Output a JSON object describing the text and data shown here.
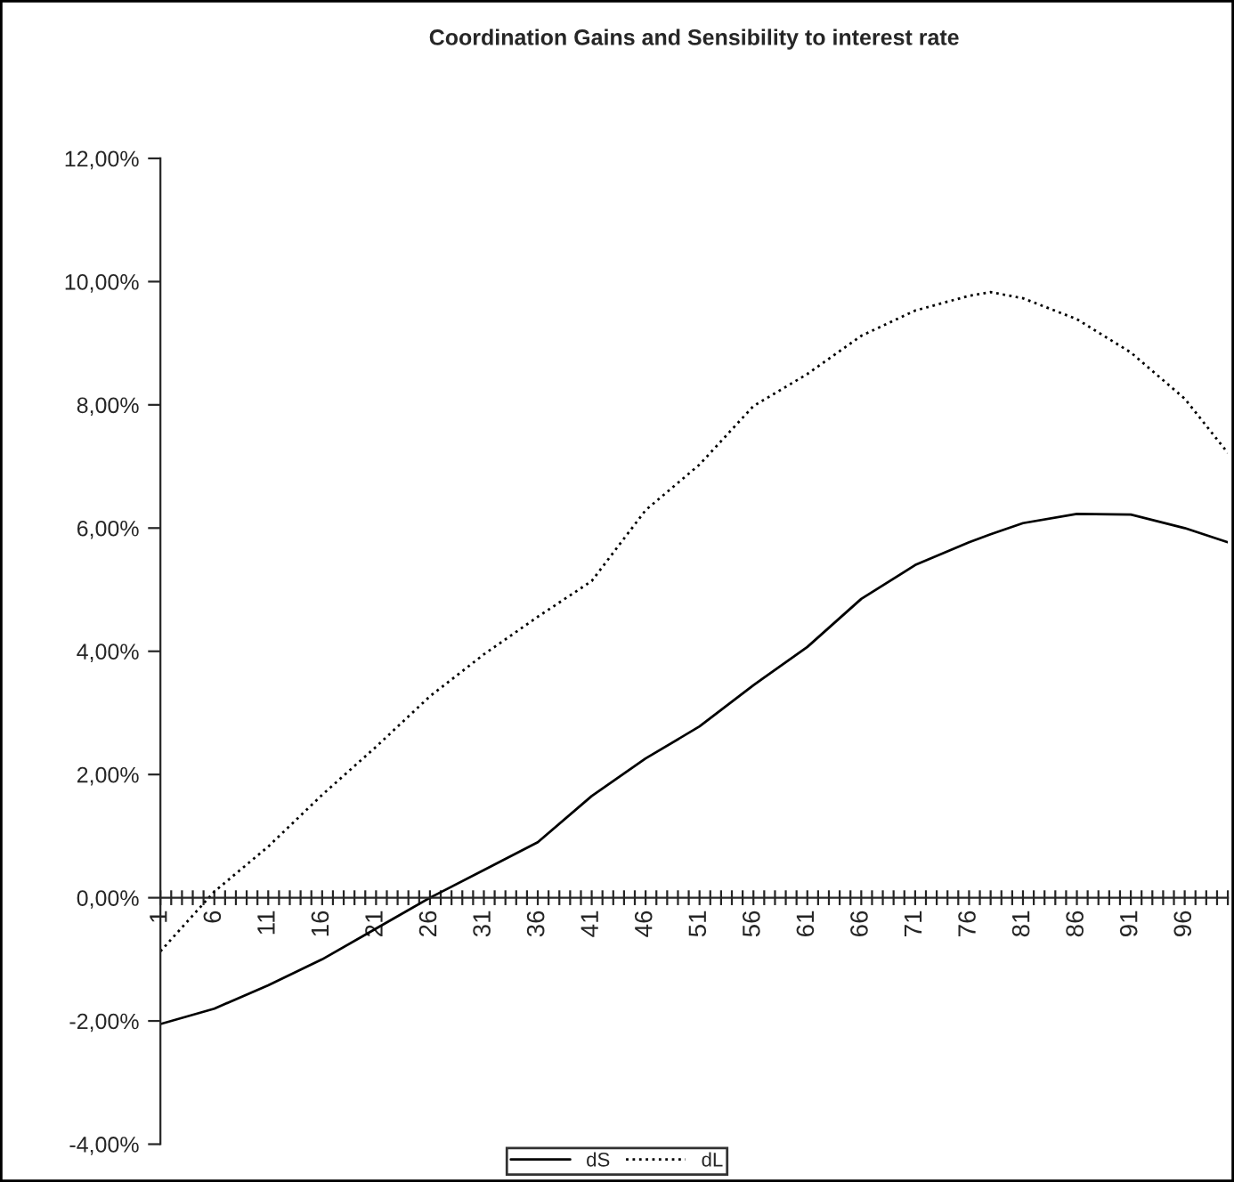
{
  "chart_data": {
    "type": "line",
    "title": "Coordination Gains and Sensibility to interest rate",
    "x": [
      1,
      6,
      11,
      16,
      21,
      26,
      31,
      36,
      41,
      46,
      51,
      56,
      61,
      66,
      71,
      76,
      78,
      81,
      86,
      91,
      96,
      100
    ],
    "series": [
      {
        "name": "dS",
        "color": "#000000",
        "line_style": "solid",
        "values": [
          -2.05,
          -1.8,
          -1.42,
          -1.0,
          -0.5,
          0.0,
          0.45,
          0.9,
          1.65,
          2.26,
          2.78,
          3.45,
          4.07,
          4.85,
          5.4,
          5.77,
          5.9,
          6.08,
          6.23,
          6.22,
          6.0,
          5.77
        ]
      },
      {
        "name": "dL",
        "color": "#000000",
        "line_style": "dotted",
        "values": [
          -0.87,
          0.1,
          0.83,
          1.67,
          2.45,
          3.27,
          3.95,
          4.56,
          5.14,
          6.29,
          7.03,
          7.98,
          8.5,
          9.12,
          9.53,
          9.77,
          9.83,
          9.73,
          9.39,
          8.85,
          8.1,
          7.22
        ]
      }
    ],
    "xlim": [
      1,
      100
    ],
    "xticks": [
      {
        "value": 1,
        "label": "1"
      },
      {
        "value": 2,
        "label": null
      },
      {
        "value": 3,
        "label": null
      },
      {
        "value": 4,
        "label": null
      },
      {
        "value": 5,
        "label": null
      },
      {
        "value": 6,
        "label": "6"
      },
      {
        "value": 7,
        "label": null
      },
      {
        "value": 8,
        "label": null
      },
      {
        "value": 9,
        "label": null
      },
      {
        "value": 10,
        "label": null
      },
      {
        "value": 11,
        "label": "11"
      },
      {
        "value": 12,
        "label": null
      },
      {
        "value": 13,
        "label": null
      },
      {
        "value": 14,
        "label": null
      },
      {
        "value": 15,
        "label": null
      },
      {
        "value": 16,
        "label": "16"
      },
      {
        "value": 17,
        "label": null
      },
      {
        "value": 18,
        "label": null
      },
      {
        "value": 19,
        "label": null
      },
      {
        "value": 20,
        "label": null
      },
      {
        "value": 21,
        "label": "21"
      },
      {
        "value": 22,
        "label": null
      },
      {
        "value": 23,
        "label": null
      },
      {
        "value": 24,
        "label": null
      },
      {
        "value": 25,
        "label": null
      },
      {
        "value": 26,
        "label": "26"
      },
      {
        "value": 27,
        "label": null
      },
      {
        "value": 28,
        "label": null
      },
      {
        "value": 29,
        "label": null
      },
      {
        "value": 30,
        "label": null
      },
      {
        "value": 31,
        "label": "31"
      },
      {
        "value": 32,
        "label": null
      },
      {
        "value": 33,
        "label": null
      },
      {
        "value": 34,
        "label": null
      },
      {
        "value": 35,
        "label": null
      },
      {
        "value": 36,
        "label": "36"
      },
      {
        "value": 37,
        "label": null
      },
      {
        "value": 38,
        "label": null
      },
      {
        "value": 39,
        "label": null
      },
      {
        "value": 40,
        "label": null
      },
      {
        "value": 41,
        "label": "41"
      },
      {
        "value": 42,
        "label": null
      },
      {
        "value": 43,
        "label": null
      },
      {
        "value": 44,
        "label": null
      },
      {
        "value": 45,
        "label": null
      },
      {
        "value": 46,
        "label": "46"
      },
      {
        "value": 47,
        "label": null
      },
      {
        "value": 48,
        "label": null
      },
      {
        "value": 49,
        "label": null
      },
      {
        "value": 50,
        "label": null
      },
      {
        "value": 51,
        "label": "51"
      },
      {
        "value": 52,
        "label": null
      },
      {
        "value": 53,
        "label": null
      },
      {
        "value": 54,
        "label": null
      },
      {
        "value": 55,
        "label": null
      },
      {
        "value": 56,
        "label": "56"
      },
      {
        "value": 57,
        "label": null
      },
      {
        "value": 58,
        "label": null
      },
      {
        "value": 59,
        "label": null
      },
      {
        "value": 60,
        "label": null
      },
      {
        "value": 61,
        "label": "61"
      },
      {
        "value": 62,
        "label": null
      },
      {
        "value": 63,
        "label": null
      },
      {
        "value": 64,
        "label": null
      },
      {
        "value": 65,
        "label": null
      },
      {
        "value": 66,
        "label": "66"
      },
      {
        "value": 67,
        "label": null
      },
      {
        "value": 68,
        "label": null
      },
      {
        "value": 69,
        "label": null
      },
      {
        "value": 70,
        "label": null
      },
      {
        "value": 71,
        "label": "71"
      },
      {
        "value": 72,
        "label": null
      },
      {
        "value": 73,
        "label": null
      },
      {
        "value": 74,
        "label": null
      },
      {
        "value": 75,
        "label": null
      },
      {
        "value": 76,
        "label": "76"
      },
      {
        "value": 77,
        "label": null
      },
      {
        "value": 78,
        "label": null
      },
      {
        "value": 79,
        "label": null
      },
      {
        "value": 80,
        "label": null
      },
      {
        "value": 81,
        "label": "81"
      },
      {
        "value": 82,
        "label": null
      },
      {
        "value": 83,
        "label": null
      },
      {
        "value": 84,
        "label": null
      },
      {
        "value": 85,
        "label": null
      },
      {
        "value": 86,
        "label": "86"
      },
      {
        "value": 87,
        "label": null
      },
      {
        "value": 88,
        "label": null
      },
      {
        "value": 89,
        "label": null
      },
      {
        "value": 90,
        "label": null
      },
      {
        "value": 91,
        "label": "91"
      },
      {
        "value": 92,
        "label": null
      },
      {
        "value": 93,
        "label": null
      },
      {
        "value": 94,
        "label": null
      },
      {
        "value": 95,
        "label": null
      },
      {
        "value": 96,
        "label": "96"
      },
      {
        "value": 97,
        "label": null
      },
      {
        "value": 98,
        "label": null
      },
      {
        "value": 99,
        "label": null
      },
      {
        "value": 100,
        "label": null
      }
    ],
    "ylim": [
      -4,
      12
    ],
    "yticks": [
      {
        "value": -4,
        "label": "-4,00%"
      },
      {
        "value": -2,
        "label": "-2,00%"
      },
      {
        "value": 0,
        "label": "0,00%"
      },
      {
        "value": 2,
        "label": "2,00%"
      },
      {
        "value": 4,
        "label": "4,00%"
      },
      {
        "value": 6,
        "label": "6,00%"
      },
      {
        "value": 8,
        "label": "8,00%"
      },
      {
        "value": 10,
        "label": "10,00%"
      },
      {
        "value": 12,
        "label": "12,00%"
      }
    ],
    "legend": "bottom",
    "grid": false,
    "marker": "none"
  }
}
